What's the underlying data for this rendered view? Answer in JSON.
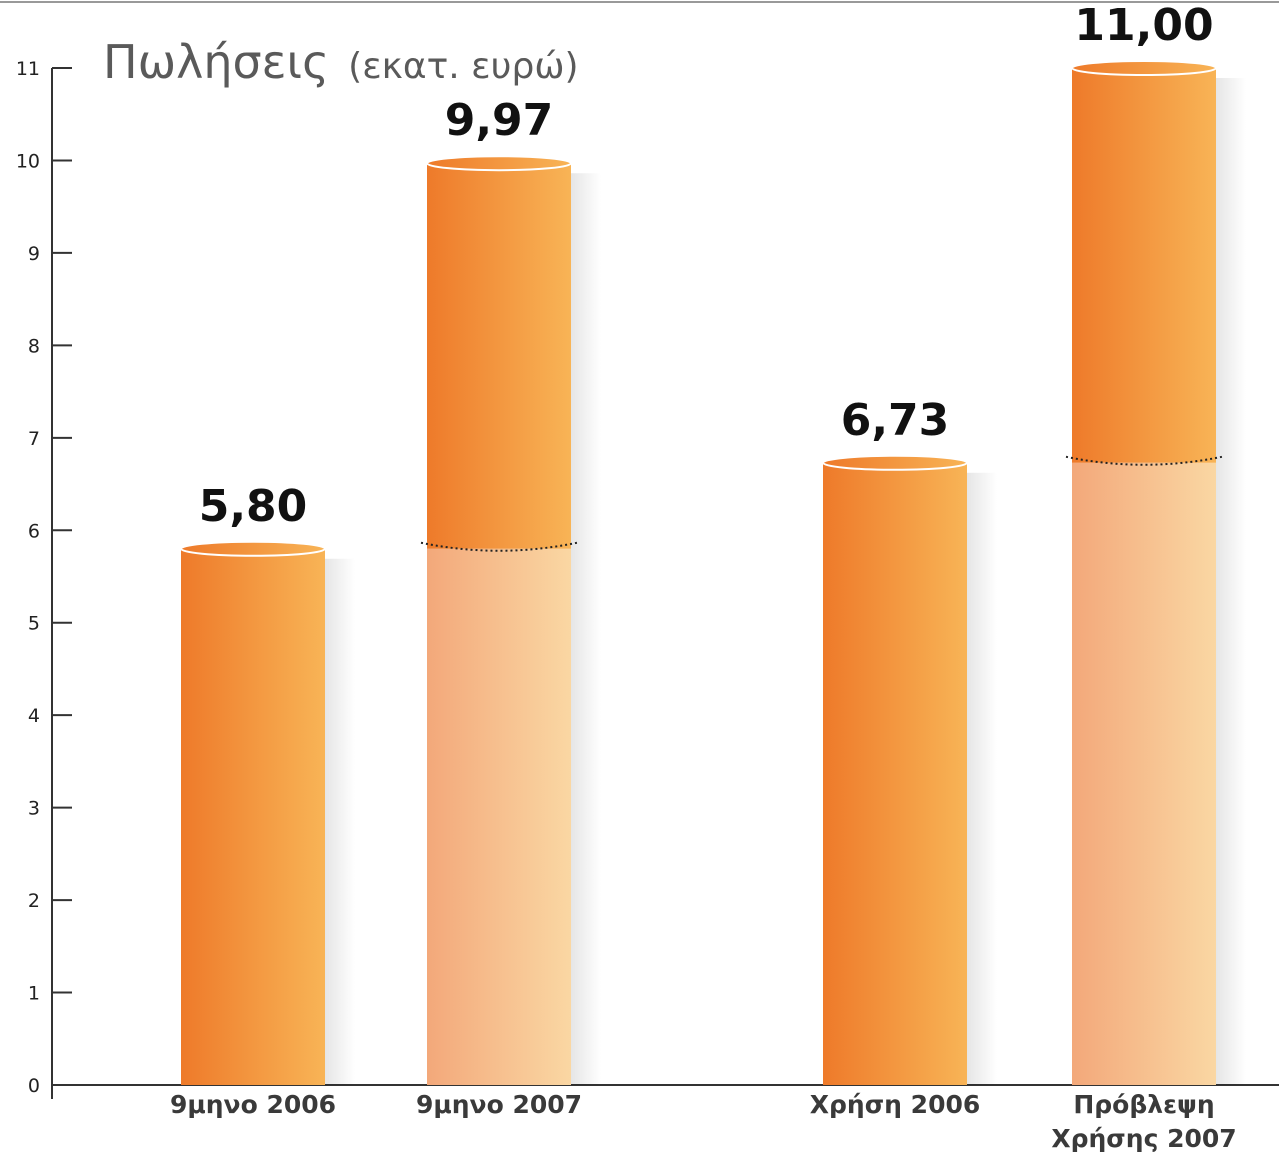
{
  "chart_data": {
    "type": "bar",
    "title": "Πωλήσεις",
    "subtitle": "(εκατ. ευρώ)",
    "ylim": [
      0,
      11
    ],
    "yticks": [
      0,
      1,
      2,
      3,
      4,
      5,
      6,
      7,
      8,
      9,
      10,
      11
    ],
    "grid": false,
    "bars": [
      {
        "label": [
          "9μηνο 2006"
        ],
        "value": 5.8,
        "value_label": "5,80",
        "base_value": null
      },
      {
        "label": [
          "9μηνο 2007"
        ],
        "value": 9.97,
        "value_label": "9,97",
        "base_value": 5.8
      },
      {
        "label": [
          "Χρήση 2006"
        ],
        "value": 6.73,
        "value_label": "6,73",
        "base_value": null
      },
      {
        "label": [
          "Πρόβλεψη",
          "Χρήσης 2007"
        ],
        "value": 11.0,
        "value_label": "11,00",
        "base_value": 6.73
      }
    ],
    "colors": {
      "bar_dark": "#ee7a2a",
      "bar_light": "#f8b456",
      "base_dark": "#f3a87a",
      "base_light": "#fad7a3",
      "axis": "#333333"
    }
  }
}
